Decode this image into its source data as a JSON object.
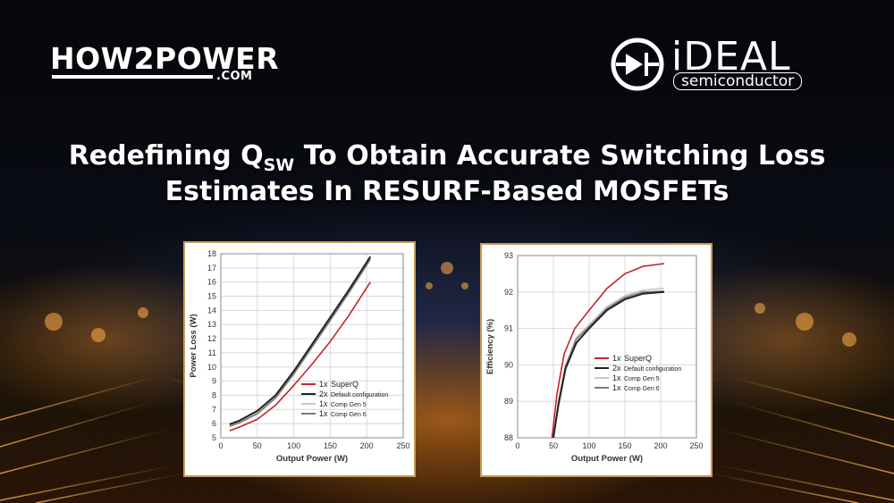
{
  "logo_left": {
    "word": "HOW2POWER",
    "suffix": ".COM"
  },
  "logo_right": {
    "word": "iDEAL",
    "sub": "semiconductor"
  },
  "title": {
    "line1_before": "Redefining Q",
    "line1_sub": "SW",
    "line1_after": " To Obtain Accurate Switching Loss",
    "line2": "Estimates In RESURF-Based MOSFETs"
  },
  "colors": {
    "superq": "#c0262c",
    "default": "#222222",
    "gen5": "#c8c8c8",
    "gen6": "#7a7a7a",
    "panel_border": "#c79a58"
  },
  "chart_data": [
    {
      "type": "line",
      "xlabel": "Output Power (W)",
      "ylabel": "Power Loss (W)",
      "xlim": [
        0,
        250
      ],
      "ylim": [
        5,
        18
      ],
      "xticks": [
        0,
        50,
        100,
        150,
        200,
        250
      ],
      "yticks": [
        5,
        6,
        7,
        8,
        9,
        10,
        11,
        12,
        13,
        14,
        15,
        16,
        17,
        18
      ],
      "grid": true,
      "legend_position": "bottom-right",
      "series": [
        {
          "count": "1x",
          "name": "SuperQ",
          "color": "#c0262c",
          "x": [
            12,
            25,
            50,
            75,
            100,
            125,
            150,
            175,
            205
          ],
          "y": [
            5.5,
            5.75,
            6.3,
            7.3,
            8.7,
            10.2,
            11.8,
            13.6,
            16.0
          ]
        },
        {
          "count": "2x",
          "name": "Default configuration",
          "color": "#222222",
          "x": [
            12,
            25,
            50,
            75,
            100,
            125,
            150,
            175,
            205
          ],
          "y": [
            5.95,
            6.2,
            6.9,
            8.0,
            9.7,
            11.6,
            13.5,
            15.4,
            17.8
          ]
        },
        {
          "count": "1x",
          "name": "Comp Gen 5",
          "color": "#c8c8c8",
          "x": [
            12,
            25,
            50,
            75,
            100,
            125,
            150,
            175,
            205
          ],
          "y": [
            5.85,
            6.1,
            6.8,
            7.9,
            9.6,
            11.5,
            13.4,
            15.3,
            17.7
          ]
        },
        {
          "count": "1x",
          "name": "Comp Gen 6",
          "color": "#7a7a7a",
          "x": [
            12,
            25,
            50,
            75,
            100,
            125,
            150,
            175,
            205
          ],
          "y": [
            5.8,
            6.05,
            6.7,
            7.8,
            9.5,
            11.4,
            13.3,
            15.2,
            17.6
          ]
        }
      ]
    },
    {
      "type": "line",
      "xlabel": "Output Power (W)",
      "ylabel": "Efficiency (%)",
      "xlim": [
        0,
        250
      ],
      "ylim": [
        88,
        93
      ],
      "xticks": [
        0,
        50,
        100,
        150,
        200,
        250
      ],
      "yticks": [
        88,
        89,
        90,
        91,
        92,
        93
      ],
      "grid": true,
      "legend_position": "bottom-right",
      "series": [
        {
          "count": "1x",
          "name": "SuperQ",
          "color": "#c0262c",
          "x": [
            48,
            55,
            65,
            80,
            100,
            125,
            150,
            175,
            205
          ],
          "y": [
            88.0,
            89.2,
            90.3,
            91.0,
            91.5,
            92.1,
            92.5,
            92.7,
            92.78
          ]
        },
        {
          "count": "2x",
          "name": "Default configuration",
          "color": "#222222",
          "x": [
            50,
            57,
            67,
            82,
            100,
            125,
            150,
            175,
            205
          ],
          "y": [
            88.0,
            88.9,
            89.9,
            90.6,
            91.0,
            91.5,
            91.8,
            91.95,
            92.0
          ]
        },
        {
          "count": "1x",
          "name": "Comp Gen 5",
          "color": "#c8c8c8",
          "x": [
            50,
            57,
            67,
            82,
            100,
            125,
            150,
            175,
            205
          ],
          "y": [
            88.0,
            89.0,
            90.0,
            90.75,
            91.1,
            91.6,
            91.9,
            92.05,
            92.1
          ]
        },
        {
          "count": "1x",
          "name": "Comp Gen 6",
          "color": "#7a7a7a",
          "x": [
            50,
            57,
            67,
            82,
            100,
            125,
            150,
            175,
            205
          ],
          "y": [
            88.0,
            88.95,
            89.95,
            90.7,
            91.05,
            91.55,
            91.85,
            92.0,
            92.02
          ]
        }
      ]
    }
  ]
}
